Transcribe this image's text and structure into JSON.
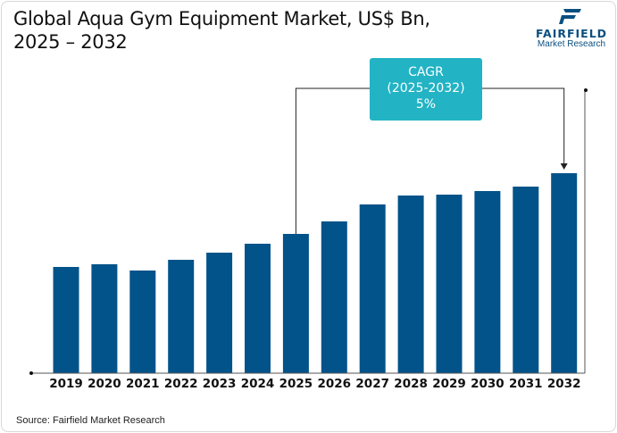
{
  "header": {
    "title_line1": "Global Aqua Gym Equipment Market, US$ Bn,",
    "title_line2": "2025 – 2032"
  },
  "logo": {
    "brand": "FAIRFIELD",
    "sub": "Market Research"
  },
  "source": "Source: Fairfield Market Research",
  "annotation": {
    "line1": "CAGR",
    "line2": "(2025-2032)",
    "line3": "5%"
  },
  "colors": {
    "bar": "#02538a",
    "cagr_box": "#22b3c4",
    "brand": "#0b4f80"
  },
  "chart_data": {
    "type": "bar",
    "title": "Global Aqua Gym Equipment Market, US$ Bn, 2025 – 2032",
    "categories": [
      "2019",
      "2020",
      "2021",
      "2022",
      "2023",
      "2024",
      "2025",
      "2026",
      "2027",
      "2028",
      "2029",
      "2030",
      "2031",
      "2032"
    ],
    "values": [
      1.19,
      1.22,
      1.15,
      1.27,
      1.35,
      1.45,
      1.56,
      1.7,
      1.89,
      1.99,
      2.0,
      2.04,
      2.09,
      2.24
    ],
    "value_note_relative": true,
    "ylim": [
      0,
      3.2
    ],
    "grid": false,
    "y_axis_visible": false,
    "annotation": "CAGR (2025-2032) 5%"
  }
}
